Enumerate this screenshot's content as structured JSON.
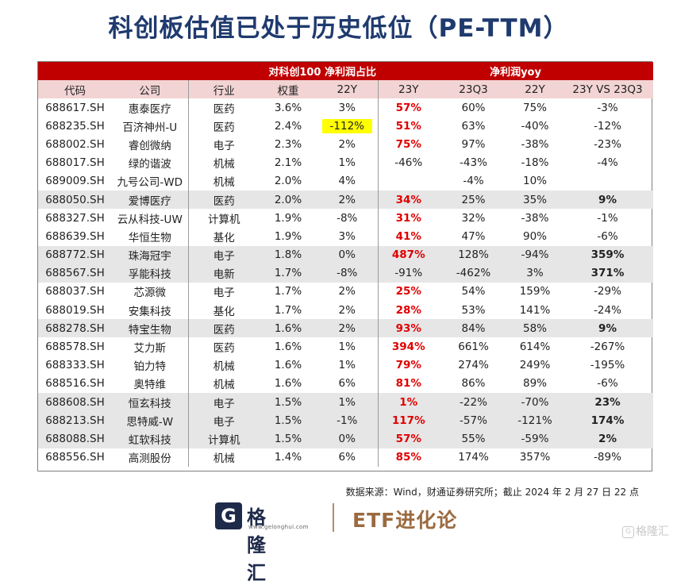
{
  "title": "科创板估值已处于历史低位（PE-TTM）",
  "header_groups": {
    "star100": "对科创100",
    "profit_share": "净利润占比",
    "profit_yoy": "净利润yoy"
  },
  "columns": [
    "代码",
    "公司",
    "行业",
    "权重",
    "22Y",
    "23Y",
    "23Q3",
    "22Y",
    "23Y VS 23Q3"
  ],
  "rows": [
    {
      "code": "688617.SH",
      "company": "惠泰医疗",
      "industry": "医药",
      "weight": "3.6%",
      "share22": "3%",
      "y23": "57%",
      "q3": "60%",
      "y22": "75%",
      "diff": "-3%",
      "y23_red": true,
      "diff_bold": false,
      "shade": false,
      "hl": false
    },
    {
      "code": "688235.SH",
      "company": "百济神州-U",
      "industry": "医药",
      "weight": "2.4%",
      "share22": "-112%",
      "y23": "51%",
      "q3": "63%",
      "y22": "-40%",
      "diff": "-12%",
      "y23_red": true,
      "diff_bold": false,
      "shade": false,
      "hl": true
    },
    {
      "code": "688002.SH",
      "company": "睿创微纳",
      "industry": "电子",
      "weight": "2.3%",
      "share22": "2%",
      "y23": "75%",
      "q3": "97%",
      "y22": "-38%",
      "diff": "-23%",
      "y23_red": true,
      "diff_bold": false,
      "shade": false,
      "hl": false
    },
    {
      "code": "688017.SH",
      "company": "绿的谐波",
      "industry": "机械",
      "weight": "2.1%",
      "share22": "1%",
      "y23": "-46%",
      "q3": "-43%",
      "y22": "-18%",
      "diff": "-4%",
      "y23_red": false,
      "diff_bold": false,
      "shade": false,
      "hl": false
    },
    {
      "code": "689009.SH",
      "company": "九号公司-WD",
      "industry": "机械",
      "weight": "2.0%",
      "share22": "4%",
      "y23": "",
      "q3": "-4%",
      "y22": "10%",
      "diff": "",
      "y23_red": false,
      "diff_bold": false,
      "shade": false,
      "hl": false
    },
    {
      "code": "688050.SH",
      "company": "爱博医疗",
      "industry": "医药",
      "weight": "2.0%",
      "share22": "2%",
      "y23": "34%",
      "q3": "25%",
      "y22": "35%",
      "diff": "9%",
      "y23_red": true,
      "diff_bold": true,
      "shade": true,
      "hl": false
    },
    {
      "code": "688327.SH",
      "company": "云从科技-UW",
      "industry": "计算机",
      "weight": "1.9%",
      "share22": "-8%",
      "y23": "31%",
      "q3": "32%",
      "y22": "-38%",
      "diff": "-1%",
      "y23_red": true,
      "diff_bold": false,
      "shade": false,
      "hl": false
    },
    {
      "code": "688639.SH",
      "company": "华恒生物",
      "industry": "基化",
      "weight": "1.9%",
      "share22": "3%",
      "y23": "41%",
      "q3": "47%",
      "y22": "90%",
      "diff": "-6%",
      "y23_red": true,
      "diff_bold": false,
      "shade": false,
      "hl": false
    },
    {
      "code": "688772.SH",
      "company": "珠海冠宇",
      "industry": "电子",
      "weight": "1.8%",
      "share22": "0%",
      "y23": "487%",
      "q3": "128%",
      "y22": "-94%",
      "diff": "359%",
      "y23_red": true,
      "diff_bold": true,
      "shade": true,
      "hl": false
    },
    {
      "code": "688567.SH",
      "company": "孚能科技",
      "industry": "电新",
      "weight": "1.7%",
      "share22": "-8%",
      "y23": "-91%",
      "q3": "-462%",
      "y22": "3%",
      "diff": "371%",
      "y23_red": false,
      "diff_bold": true,
      "shade": true,
      "hl": false
    },
    {
      "code": "688037.SH",
      "company": "芯源微",
      "industry": "电子",
      "weight": "1.7%",
      "share22": "2%",
      "y23": "25%",
      "q3": "54%",
      "y22": "159%",
      "diff": "-29%",
      "y23_red": true,
      "diff_bold": false,
      "shade": false,
      "hl": false
    },
    {
      "code": "688019.SH",
      "company": "安集科技",
      "industry": "基化",
      "weight": "1.7%",
      "share22": "2%",
      "y23": "28%",
      "q3": "53%",
      "y22": "141%",
      "diff": "-24%",
      "y23_red": true,
      "diff_bold": false,
      "shade": false,
      "hl": false
    },
    {
      "code": "688278.SH",
      "company": "特宝生物",
      "industry": "医药",
      "weight": "1.6%",
      "share22": "2%",
      "y23": "93%",
      "q3": "84%",
      "y22": "58%",
      "diff": "9%",
      "y23_red": true,
      "diff_bold": true,
      "shade": true,
      "hl": false
    },
    {
      "code": "688578.SH",
      "company": "艾力斯",
      "industry": "医药",
      "weight": "1.6%",
      "share22": "1%",
      "y23": "394%",
      "q3": "661%",
      "y22": "614%",
      "diff": "-267%",
      "y23_red": true,
      "diff_bold": false,
      "shade": false,
      "hl": false
    },
    {
      "code": "688333.SH",
      "company": "铂力特",
      "industry": "机械",
      "weight": "1.6%",
      "share22": "1%",
      "y23": "79%",
      "q3": "274%",
      "y22": "249%",
      "diff": "-195%",
      "y23_red": true,
      "diff_bold": false,
      "shade": false,
      "hl": false
    },
    {
      "code": "688516.SH",
      "company": "奥特维",
      "industry": "机械",
      "weight": "1.6%",
      "share22": "6%",
      "y23": "81%",
      "q3": "86%",
      "y22": "89%",
      "diff": "-6%",
      "y23_red": true,
      "diff_bold": false,
      "shade": false,
      "hl": false
    },
    {
      "code": "688608.SH",
      "company": "恒玄科技",
      "industry": "电子",
      "weight": "1.5%",
      "share22": "1%",
      "y23": "1%",
      "q3": "-22%",
      "y22": "-70%",
      "diff": "23%",
      "y23_red": true,
      "diff_bold": true,
      "shade": true,
      "hl": false
    },
    {
      "code": "688213.SH",
      "company": "思特威-W",
      "industry": "电子",
      "weight": "1.5%",
      "share22": "-1%",
      "y23": "117%",
      "q3": "-57%",
      "y22": "-121%",
      "diff": "174%",
      "y23_red": true,
      "diff_bold": true,
      "shade": true,
      "hl": false
    },
    {
      "code": "688088.SH",
      "company": "虹软科技",
      "industry": "计算机",
      "weight": "1.5%",
      "share22": "0%",
      "y23": "57%",
      "q3": "55%",
      "y22": "-59%",
      "diff": "2%",
      "y23_red": true,
      "diff_bold": true,
      "shade": true,
      "hl": false
    },
    {
      "code": "688556.SH",
      "company": "高测股份",
      "industry": "机械",
      "weight": "1.4%",
      "share22": "6%",
      "y23": "85%",
      "q3": "174%",
      "y22": "357%",
      "diff": "-89%",
      "y23_red": true,
      "diff_bold": false,
      "shade": false,
      "hl": false
    }
  ],
  "source": "数据来源：Wind，财通证券研究所；截止 2024 年 2 月 27 日 22 点",
  "logo": {
    "mark": "G",
    "name": "格隆汇",
    "url": "www.gelonghui.com"
  },
  "brand": "ETF进化论",
  "watermark": "格隆汇"
}
